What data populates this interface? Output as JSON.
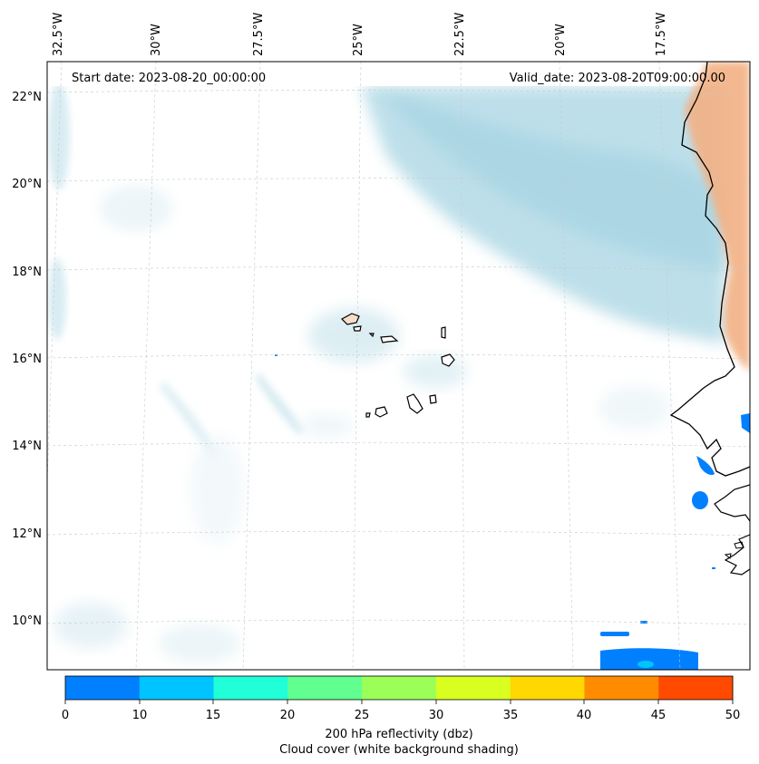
{
  "header": {
    "start_date": "Start date: 2023-08-20_00:00:00",
    "valid_date": "Valid_date: 2023-08-20T09:00:00.00"
  },
  "map": {
    "longitude_labels": [
      "32.5°W",
      "30°W",
      "27.5°W",
      "25°W",
      "22.5°W",
      "20°W",
      "17.5°W"
    ],
    "latitude_labels": [
      "22°N",
      "20°N",
      "18°N",
      "16°N",
      "14°N",
      "12°N",
      "10°N"
    ],
    "gridlines": true,
    "features": [
      "coastline-west-africa",
      "cape-verde-islands"
    ]
  },
  "colorbar": {
    "ticks": [
      "0",
      "10",
      "15",
      "20",
      "25",
      "30",
      "35",
      "40",
      "45",
      "50"
    ],
    "colors": [
      "#0080ff",
      "#00c4ff",
      "#20ffd8",
      "#60ff90",
      "#9cff58",
      "#d8ff20",
      "#ffd800",
      "#ff8c00",
      "#ff4a00"
    ],
    "label_line1": "200 hPa reflectivity (dbz)",
    "label_line2": "Cloud cover (white background shading)"
  }
}
